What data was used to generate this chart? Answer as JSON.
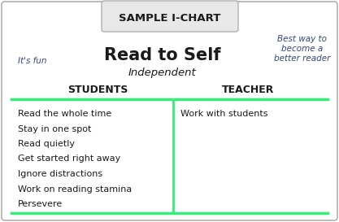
{
  "title": "SAMPLE I-CHART",
  "main_title": "Read to Self",
  "subtitle": "Independent",
  "left_annotation": "It's fun",
  "right_annotation": "Best way to\nbecome a\nbetter reader",
  "col1_header": "STUDENTS",
  "col2_header": "TEACHER",
  "col1_items": [
    "Read the whole time",
    "Stay in one spot",
    "Read quietly",
    "Get started right away",
    "Ignore distractions",
    "Work on reading stamina",
    "Persevere"
  ],
  "col2_items": [
    "Work with students"
  ],
  "bg_color": "#ffffff",
  "border_color": "#b0b0b0",
  "title_bg": "#e8e8e8",
  "title_border": "#b0b0b0",
  "green_line_color": "#33ee77",
  "text_color": "#1a1a1a",
  "header_color": "#1a1a1a",
  "annotation_color": "#334488",
  "title_fontsize": 9.5,
  "main_title_fontsize": 15,
  "subtitle_fontsize": 9.5,
  "header_fontsize": 9,
  "item_fontsize": 8,
  "annot_fontsize": 7.5
}
